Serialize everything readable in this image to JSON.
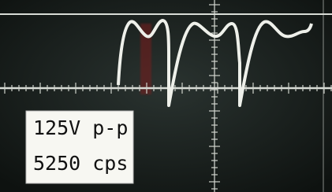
{
  "label": {
    "lines": [
      "125V p-p",
      "5250 cps"
    ]
  }
}
